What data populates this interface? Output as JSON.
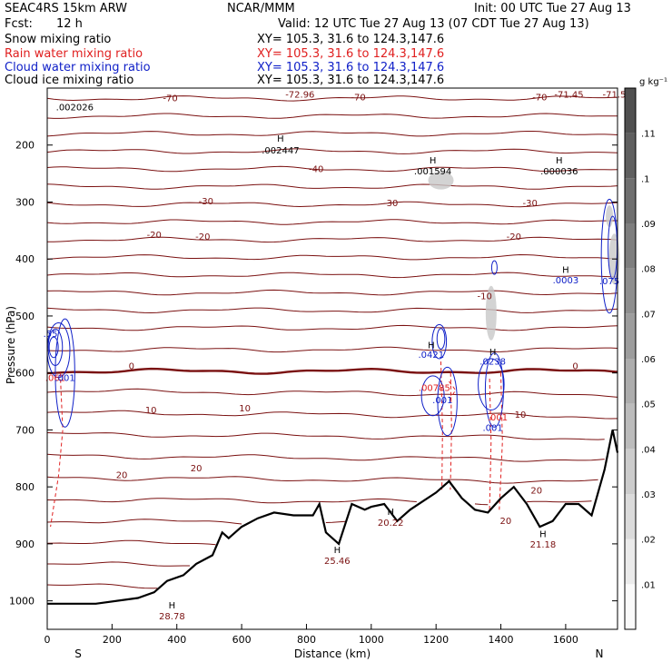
{
  "header": {
    "model": "SEAC4RS 15km ARW",
    "org": "NCAR/MMM",
    "init": "Init: 00 UTC Tue 27 Aug 13",
    "fcst_label": "Fcst:",
    "fcst_value": "12 h",
    "valid": "Valid: 12 UTC Tue 27 Aug 13 (07 CDT Tue 27 Aug 13)"
  },
  "legend": [
    {
      "label": "Snow mixing ratio",
      "xy": "XY= 105.3, 31.6 to 124.3,147.6",
      "color": "#000000"
    },
    {
      "label": "Rain water mixing ratio",
      "xy": "XY= 105.3, 31.6 to 124.3,147.6",
      "color": "#e02020"
    },
    {
      "label": "Cloud water mixing ratio",
      "xy": "XY= 105.3, 31.6 to 124.3,147.6",
      "color": "#1020c8"
    },
    {
      "label": "Cloud ice mixing ratio",
      "xy": "XY= 105.3, 31.6 to 124.3,147.6",
      "color": "#000000"
    }
  ],
  "axes": {
    "xlabel": "Distance (km)",
    "ylabel": "Pressure (hPa)",
    "x_left_label": "S",
    "x_right_label": "N",
    "colorbar_unit": "g kg⁻¹"
  },
  "colors": {
    "temperature": "#7a1010",
    "rain": "#e02020",
    "cloud_water": "#1020c8",
    "terrain": "#000000"
  },
  "chart_data": {
    "type": "cross-section",
    "x_range": [
      0,
      1760
    ],
    "y_range_hpa": [
      1050,
      100
    ],
    "x_ticks": [
      "0",
      "200",
      "400",
      "600",
      "800",
      "1000",
      "1200",
      "1400",
      "1600"
    ],
    "y_ticks": [
      "200",
      "300",
      "400",
      "500",
      "600",
      "700",
      "800",
      "900",
      "1000"
    ],
    "colorbar_ticks": [
      ".01",
      ".02",
      ".03",
      ".04",
      ".05",
      ".06",
      ".07",
      ".08",
      ".09",
      ".1",
      ".11"
    ],
    "terrain_hpa": [
      [
        0,
        1005
      ],
      [
        150,
        1005
      ],
      [
        280,
        995
      ],
      [
        330,
        985
      ],
      [
        370,
        965
      ],
      [
        420,
        955
      ],
      [
        460,
        935
      ],
      [
        510,
        920
      ],
      [
        540,
        880
      ],
      [
        560,
        890
      ],
      [
        600,
        870
      ],
      [
        650,
        855
      ],
      [
        700,
        845
      ],
      [
        760,
        850
      ],
      [
        820,
        850
      ],
      [
        840,
        830
      ],
      [
        860,
        880
      ],
      [
        900,
        900
      ],
      [
        940,
        830
      ],
      [
        980,
        840
      ],
      [
        1000,
        835
      ],
      [
        1040,
        830
      ],
      [
        1080,
        860
      ],
      [
        1120,
        840
      ],
      [
        1160,
        825
      ],
      [
        1200,
        810
      ],
      [
        1240,
        790
      ],
      [
        1280,
        820
      ],
      [
        1320,
        840
      ],
      [
        1360,
        845
      ],
      [
        1400,
        820
      ],
      [
        1440,
        800
      ],
      [
        1480,
        830
      ],
      [
        1520,
        870
      ],
      [
        1560,
        860
      ],
      [
        1600,
        830
      ],
      [
        1640,
        830
      ],
      [
        1680,
        850
      ],
      [
        1720,
        770
      ],
      [
        1745,
        700
      ],
      [
        1760,
        740
      ]
    ],
    "isotherm_levels": [
      -70,
      -60,
      -50,
      -40,
      -30,
      -20,
      -10,
      0,
      10,
      20
    ],
    "isotherm_labels": [
      {
        "text": "-70",
        "x": 380,
        "p": 117
      },
      {
        "text": "-72.96",
        "x": 780,
        "p": 110
      },
      {
        "text": "-70",
        "x": 960,
        "p": 115
      },
      {
        "text": "-70",
        "x": 1520,
        "p": 115
      },
      {
        "text": "-71.45",
        "x": 1610,
        "p": 110
      },
      {
        "text": "-71.5",
        "x": 1750,
        "p": 110
      },
      {
        "text": "-40",
        "x": 830,
        "p": 241
      },
      {
        "text": "-30",
        "x": 490,
        "p": 298
      },
      {
        "text": "-30",
        "x": 1060,
        "p": 301
      },
      {
        "text": "-30",
        "x": 1490,
        "p": 301
      },
      {
        "text": "-20",
        "x": 330,
        "p": 357
      },
      {
        "text": "-20",
        "x": 480,
        "p": 360
      },
      {
        "text": "-20",
        "x": 1440,
        "p": 360
      },
      {
        "text": "-10",
        "x": 1350,
        "p": 464
      },
      {
        "text": "0",
        "x": 260,
        "p": 587
      },
      {
        "text": "0",
        "x": 1630,
        "p": 587
      },
      {
        "text": "10",
        "x": 320,
        "p": 664
      },
      {
        "text": "10",
        "x": 610,
        "p": 661
      },
      {
        "text": "10",
        "x": 1460,
        "p": 672
      },
      {
        "text": "20",
        "x": 230,
        "p": 778
      },
      {
        "text": "20",
        "x": 460,
        "p": 766
      },
      {
        "text": "20",
        "x": 1510,
        "p": 805
      }
    ],
    "max_labels": [
      {
        "value": ".002026",
        "x": 85,
        "p": 133,
        "color": "#000000"
      },
      {
        "value": ".002447",
        "x": 720,
        "p": 208,
        "color": "#000000"
      },
      {
        "value": ".001594",
        "x": 1190,
        "p": 245,
        "color": "#000000"
      },
      {
        "value": ".000036",
        "x": 1580,
        "p": 245,
        "color": "#000000"
      },
      {
        "value": ".0003",
        "x": 1600,
        "p": 436,
        "color": "#1020c8"
      },
      {
        "value": ".075",
        "x": 1735,
        "p": 438,
        "color": "#1020c8"
      },
      {
        "value": ".0421",
        "x": 1185,
        "p": 567,
        "color": "#1020c8"
      },
      {
        "value": ".0238",
        "x": 1375,
        "p": 579,
        "color": "#1020c8"
      },
      {
        "value": ".00785",
        "x": 1195,
        "p": 625,
        "color": "#e02020"
      },
      {
        "value": ".001",
        "x": 1220,
        "p": 647,
        "color": "#1020c8"
      },
      {
        "value": ".001",
        "x": 1390,
        "p": 677,
        "color": "#e02020"
      },
      {
        "value": ".001",
        "x": 1375,
        "p": 695,
        "color": "#1020c8"
      },
      {
        "value": ".061",
        "x": 25,
        "p": 608,
        "color": "#e02020"
      },
      {
        "value": ".001",
        "x": 55,
        "p": 608,
        "color": "#1020c8"
      },
      {
        "value": ".55",
        "x": 10,
        "p": 530,
        "color": "#1020c8"
      },
      {
        "value": "20.22",
        "x": 1060,
        "p": 862,
        "color": "#7a1010"
      },
      {
        "value": "20",
        "x": 1415,
        "p": 859,
        "color": "#7a1010"
      },
      {
        "value": "21.18",
        "x": 1530,
        "p": 900,
        "color": "#7a1010"
      },
      {
        "value": "25.46",
        "x": 895,
        "p": 929,
        "color": "#7a1010"
      },
      {
        "value": "28.78",
        "x": 385,
        "p": 1026,
        "color": "#7a1010"
      }
    ],
    "h_markers": [
      {
        "x": 720,
        "p": 188
      },
      {
        "x": 1190,
        "p": 226
      },
      {
        "x": 1580,
        "p": 226
      },
      {
        "x": 1600,
        "p": 418
      },
      {
        "x": 1185,
        "p": 550
      },
      {
        "x": 1375,
        "p": 562
      },
      {
        "x": 1060,
        "p": 843
      },
      {
        "x": 1530,
        "p": 882
      },
      {
        "x": 895,
        "p": 910
      },
      {
        "x": 385,
        "p": 1007
      }
    ]
  }
}
